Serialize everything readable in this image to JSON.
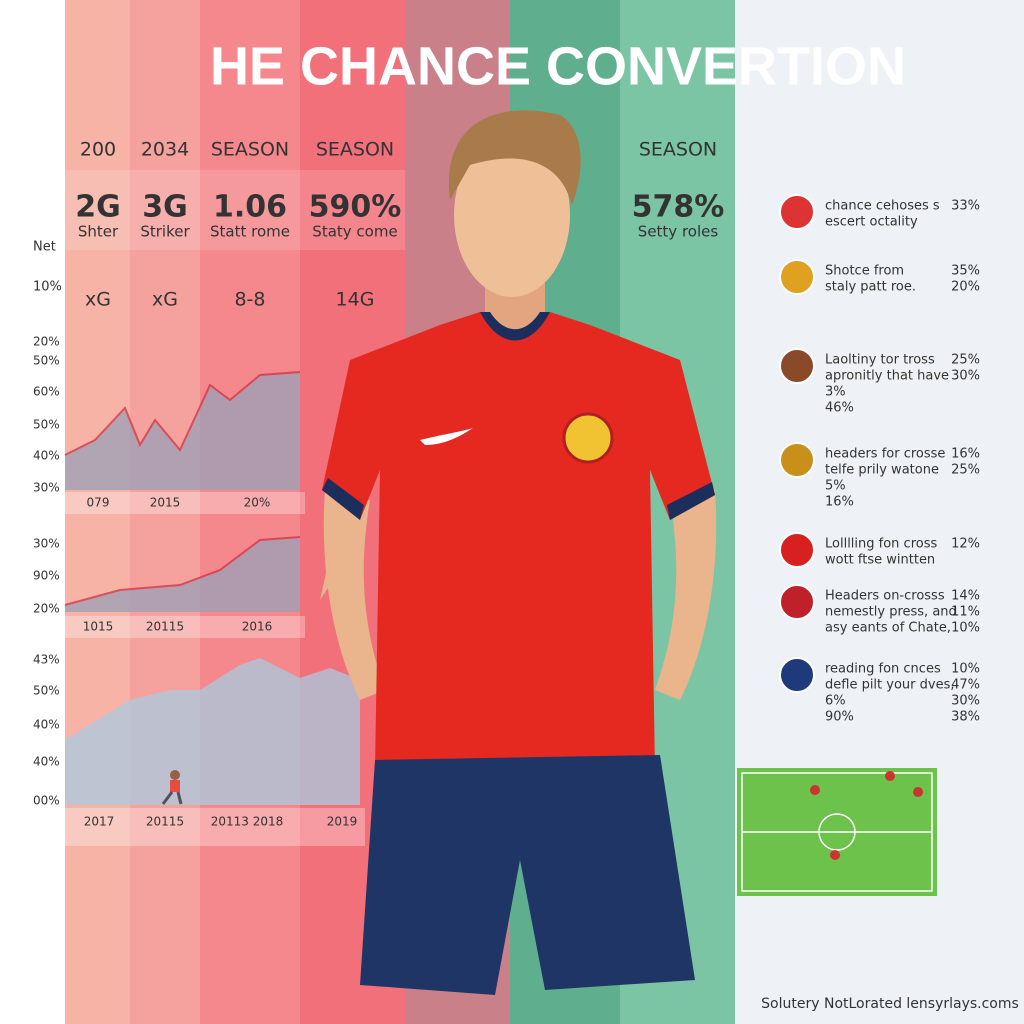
{
  "header": {
    "title": "HE CHANCE CONVERTION"
  },
  "stats": [
    {
      "header": "200",
      "value": "2G",
      "sub": "Shter",
      "metric": "xG"
    },
    {
      "header": "2034",
      "value": "3G",
      "sub": "Striker",
      "metric": "xG"
    },
    {
      "header": "SEASON",
      "value": "1.06",
      "sub": "Statt rome",
      "metric": "8-8"
    },
    {
      "header": "SEASON",
      "value": "590%",
      "sub": "Staty come",
      "metric": "14G"
    },
    {
      "header": "SEASON",
      "value": "578%",
      "sub": "Setty roles"
    }
  ],
  "side_labels": [
    "Net",
    "10%"
  ],
  "charts": [
    {
      "y_labels": [
        "20%",
        "50%",
        "60%",
        "50%",
        "40%",
        "30%"
      ],
      "x_labels": [
        "079",
        "2015",
        "20%"
      ]
    },
    {
      "y_labels": [
        "30%",
        "90%",
        "20%"
      ],
      "x_labels": [
        "1015",
        "20115",
        "2016"
      ]
    },
    {
      "y_labels": [
        "43%",
        "50%",
        "40%",
        "40%",
        "00%"
      ],
      "x_labels": [
        "2017",
        "20115",
        "20113 2018",
        "2019"
      ]
    }
  ],
  "list": [
    {
      "lines": [
        "chance cehoses s",
        "escert octality"
      ],
      "values": [
        "33%"
      ]
    },
    {
      "lines": [
        "Shotce from",
        "staly patt roe."
      ],
      "values": [
        "35%",
        "20%"
      ]
    },
    {
      "lines": [
        "Laoltiny tor tross",
        "apronitly that have",
        "3%",
        "46%"
      ],
      "values": [
        "25%",
        "30%"
      ]
    },
    {
      "lines": [
        "headers for crosse",
        "telfe prily watone",
        "5%",
        "16%"
      ],
      "values": [
        "16%",
        "25%"
      ]
    },
    {
      "lines": [
        "Lolllling fon cross",
        "wott ftse wintten"
      ],
      "values": [
        "12%"
      ]
    },
    {
      "lines": [
        "Headers on-crosss",
        "nemestly press, and",
        "asy eants of Chate,"
      ],
      "values": [
        "14%",
        "11%",
        "10%"
      ]
    },
    {
      "lines": [
        "reading fon cnces",
        "defle pilt your dves,",
        "6%",
        "90%"
      ],
      "values": [
        "10%",
        "47%",
        "30%",
        "38%"
      ]
    }
  ],
  "footer": "Solutery NotLorated lensyrlays.coms"
}
